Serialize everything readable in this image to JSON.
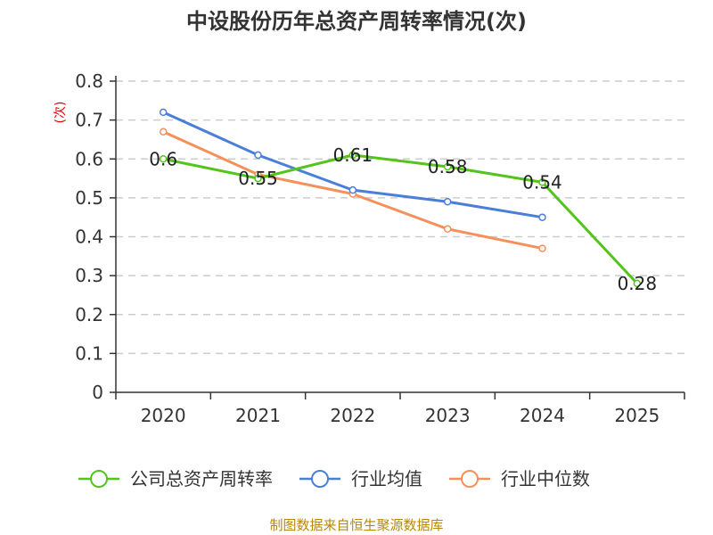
{
  "chart_data": {
    "type": "line",
    "title": "中设股份历年总资产周转率情况(次)",
    "ylabel": "(次)",
    "xlabel": "",
    "categories": [
      "2020",
      "2021",
      "2022",
      "2023",
      "2024",
      "2025"
    ],
    "ylim": [
      0,
      0.8
    ],
    "yticks": [
      0,
      0.1,
      0.2,
      0.3,
      0.4,
      0.5,
      0.6,
      0.7,
      0.8
    ],
    "grid": true,
    "legend_position": "bottom",
    "series": [
      {
        "name": "公司总资产周转率",
        "color": "#52c41a",
        "values": [
          0.6,
          0.55,
          0.61,
          0.58,
          0.54,
          0.28
        ],
        "labels": true
      },
      {
        "name": "行业均值",
        "color": "#4a7fd9",
        "values": [
          0.72,
          0.61,
          0.52,
          0.49,
          0.45,
          null
        ],
        "labels": false
      },
      {
        "name": "行业中位数",
        "color": "#f5905a",
        "values": [
          0.67,
          0.56,
          0.51,
          0.42,
          0.37,
          null
        ],
        "labels": false
      }
    ]
  },
  "source": "制图数据来自恒生聚源数据库"
}
